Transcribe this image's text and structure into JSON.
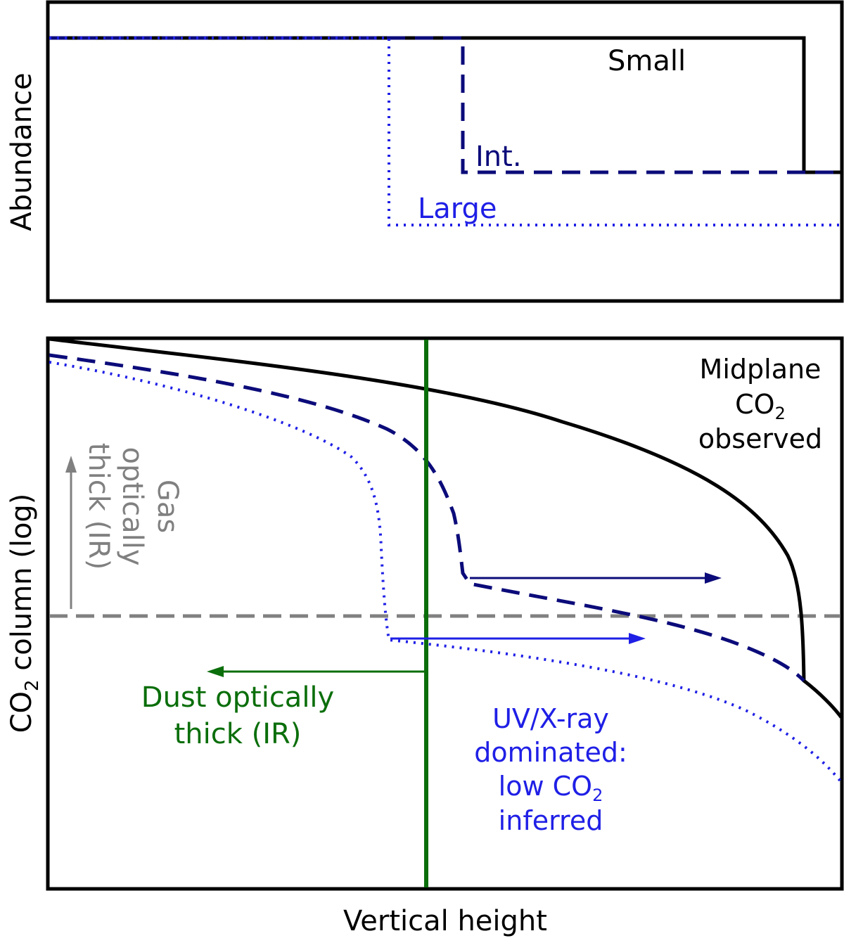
{
  "top_panel": {
    "ylabel": "Abundance",
    "labels": {
      "small": "Small",
      "intermediate": "Int.",
      "large": "Large"
    }
  },
  "bottom_panel": {
    "ylabel_pre": "CO",
    "ylabel_sub": "2",
    "ylabel_post": " column (log)",
    "xlabel": "Vertical height",
    "midplane": {
      "line1": "Midplane",
      "line2_pre": "CO",
      "line2_sub": "2",
      "line3": "observed"
    },
    "gas": {
      "line1": "Gas",
      "line2": "optically",
      "line3": "thick (IR)"
    },
    "dust": {
      "line1": "Dust optically",
      "line2": "thick (IR)"
    },
    "uv": {
      "line1": "UV/X-ray",
      "line2": "dominated:",
      "line3_pre": "low CO",
      "line3_sub": "2",
      "line4": "inferred"
    }
  },
  "colors": {
    "small": "#000000",
    "intermediate": "#0b0b7a",
    "large": "#1f1fe6",
    "gas_threshold": "#808080",
    "dust_threshold": "#0a6e0a"
  }
}
